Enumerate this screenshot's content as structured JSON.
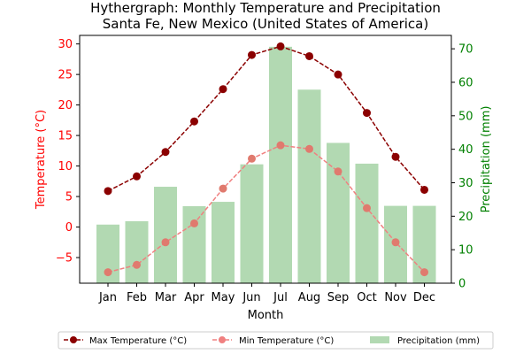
{
  "chart_data": {
    "type": "bar+line",
    "title": "Hythergraph: Monthly Temperature and Precipitation",
    "subtitle": "Santa Fe, New Mexico (United States of America)",
    "xlabel": "Month",
    "ylabel_left": "Temperature (°C)",
    "ylabel_right": "Precipitation (mm)",
    "categories": [
      "Jan",
      "Feb",
      "Mar",
      "Apr",
      "May",
      "Jun",
      "Jul",
      "Aug",
      "Sep",
      "Oct",
      "Nov",
      "Dec"
    ],
    "ylim_left": [
      -9.2,
      31.4
    ],
    "ylim_right": [
      0,
      74
    ],
    "yticks_left": [
      -5,
      0,
      5,
      10,
      15,
      20,
      25,
      30
    ],
    "yticks_right": [
      0,
      10,
      20,
      30,
      40,
      50,
      60,
      70
    ],
    "series": [
      {
        "name": "Max Temperature (°C)",
        "axis": "left",
        "kind": "line",
        "color": "#8b0000",
        "values": [
          5.9,
          8.3,
          12.3,
          17.3,
          22.6,
          28.2,
          29.6,
          28.0,
          25.0,
          18.7,
          11.5,
          6.1
        ]
      },
      {
        "name": "Min Temperature (°C)",
        "axis": "left",
        "kind": "line",
        "color": "#f08080",
        "values": [
          -7.4,
          -6.2,
          -2.5,
          0.6,
          6.3,
          11.2,
          13.4,
          12.8,
          9.1,
          3.1,
          -2.5,
          -7.4
        ]
      },
      {
        "name": "Precipitation (mm)",
        "axis": "right",
        "kind": "bar",
        "color": "#b2d9b2",
        "values": [
          17.5,
          18.5,
          28.8,
          23.0,
          24.3,
          35.5,
          70.6,
          57.8,
          41.9,
          35.7,
          23.1,
          23.1
        ]
      }
    ],
    "legend": "bottom-center",
    "colors": {
      "left_axis": "#ff0000",
      "right_axis": "#008000"
    }
  }
}
